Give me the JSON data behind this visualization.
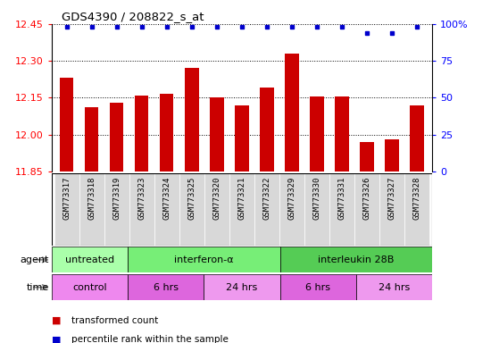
{
  "title": "GDS4390 / 208822_s_at",
  "samples": [
    "GSM773317",
    "GSM773318",
    "GSM773319",
    "GSM773323",
    "GSM773324",
    "GSM773325",
    "GSM773320",
    "GSM773321",
    "GSM773322",
    "GSM773329",
    "GSM773330",
    "GSM773331",
    "GSM773326",
    "GSM773327",
    "GSM773328"
  ],
  "values": [
    12.23,
    12.11,
    12.13,
    12.16,
    12.165,
    12.27,
    12.15,
    12.12,
    12.19,
    12.33,
    12.155,
    12.155,
    11.97,
    11.98,
    12.12
  ],
  "percentiles": [
    98,
    98,
    98,
    98,
    98,
    98,
    98,
    98,
    98,
    98,
    98,
    98,
    94,
    94,
    98
  ],
  "ylim_left": [
    11.85,
    12.45
  ],
  "ylim_right": [
    0,
    100
  ],
  "yticks_left": [
    11.85,
    12.0,
    12.15,
    12.3,
    12.45
  ],
  "yticks_right": [
    0,
    25,
    50,
    75,
    100
  ],
  "bar_color": "#cc0000",
  "dot_color": "#0000cc",
  "agent_groups": [
    {
      "label": "untreated",
      "start": 0,
      "end": 3,
      "color": "#aaffaa"
    },
    {
      "label": "interferon-α",
      "start": 3,
      "end": 9,
      "color": "#77ee77"
    },
    {
      "label": "interleukin 28B",
      "start": 9,
      "end": 15,
      "color": "#55cc55"
    }
  ],
  "time_groups": [
    {
      "label": "control",
      "start": 0,
      "end": 3,
      "color": "#ee88ee"
    },
    {
      "label": "6 hrs",
      "start": 3,
      "end": 6,
      "color": "#dd66dd"
    },
    {
      "label": "24 hrs",
      "start": 6,
      "end": 9,
      "color": "#ee99ee"
    },
    {
      "label": "6 hrs",
      "start": 9,
      "end": 12,
      "color": "#dd66dd"
    },
    {
      "label": "24 hrs",
      "start": 12,
      "end": 15,
      "color": "#ee99ee"
    }
  ],
  "legend_items": [
    {
      "label": "transformed count",
      "color": "#cc0000"
    },
    {
      "label": "percentile rank within the sample",
      "color": "#0000cc"
    }
  ],
  "xtick_bg": "#d8d8d8",
  "border_color": "#000000"
}
